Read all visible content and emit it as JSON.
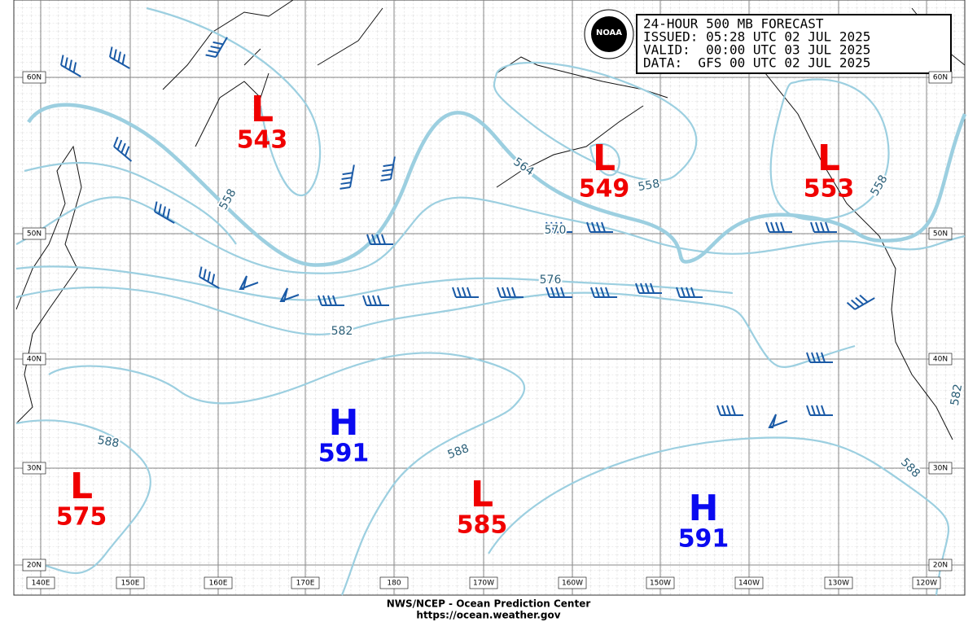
{
  "header": {
    "lines": [
      "24-HOUR 500 MB FORECAST",
      "ISSUED: 05:28 UTC 02 JUL 2025",
      "VALID:  00:00 UTC 03 JUL 2025",
      "DATA:  GFS 00 UTC 02 JUL 2025"
    ],
    "logo_text": "NOAA"
  },
  "pressure_centers": [
    {
      "type": "L",
      "value": "543"
    },
    {
      "type": "L",
      "value": "549"
    },
    {
      "type": "L",
      "value": "553"
    },
    {
      "type": "L",
      "value": "575"
    },
    {
      "type": "L",
      "value": "585"
    },
    {
      "type": "H",
      "value": "591"
    },
    {
      "type": "H",
      "value": "591"
    }
  ],
  "contour_labels": [
    "558",
    "564",
    "570",
    "576",
    "582",
    "588",
    "588",
    "588",
    "558",
    "558",
    "582"
  ],
  "latitude_labels": [
    "60N",
    "50N",
    "40N",
    "30N",
    "20N"
  ],
  "longitude_labels": [
    "140E",
    "150E",
    "160E",
    "170E",
    "180",
    "170W",
    "160W",
    "150W",
    "140W",
    "130W",
    "120W"
  ],
  "footer": {
    "agency": "NWS/NCEP - Ocean Prediction Center",
    "url": "https://ocean.weather.gov"
  }
}
